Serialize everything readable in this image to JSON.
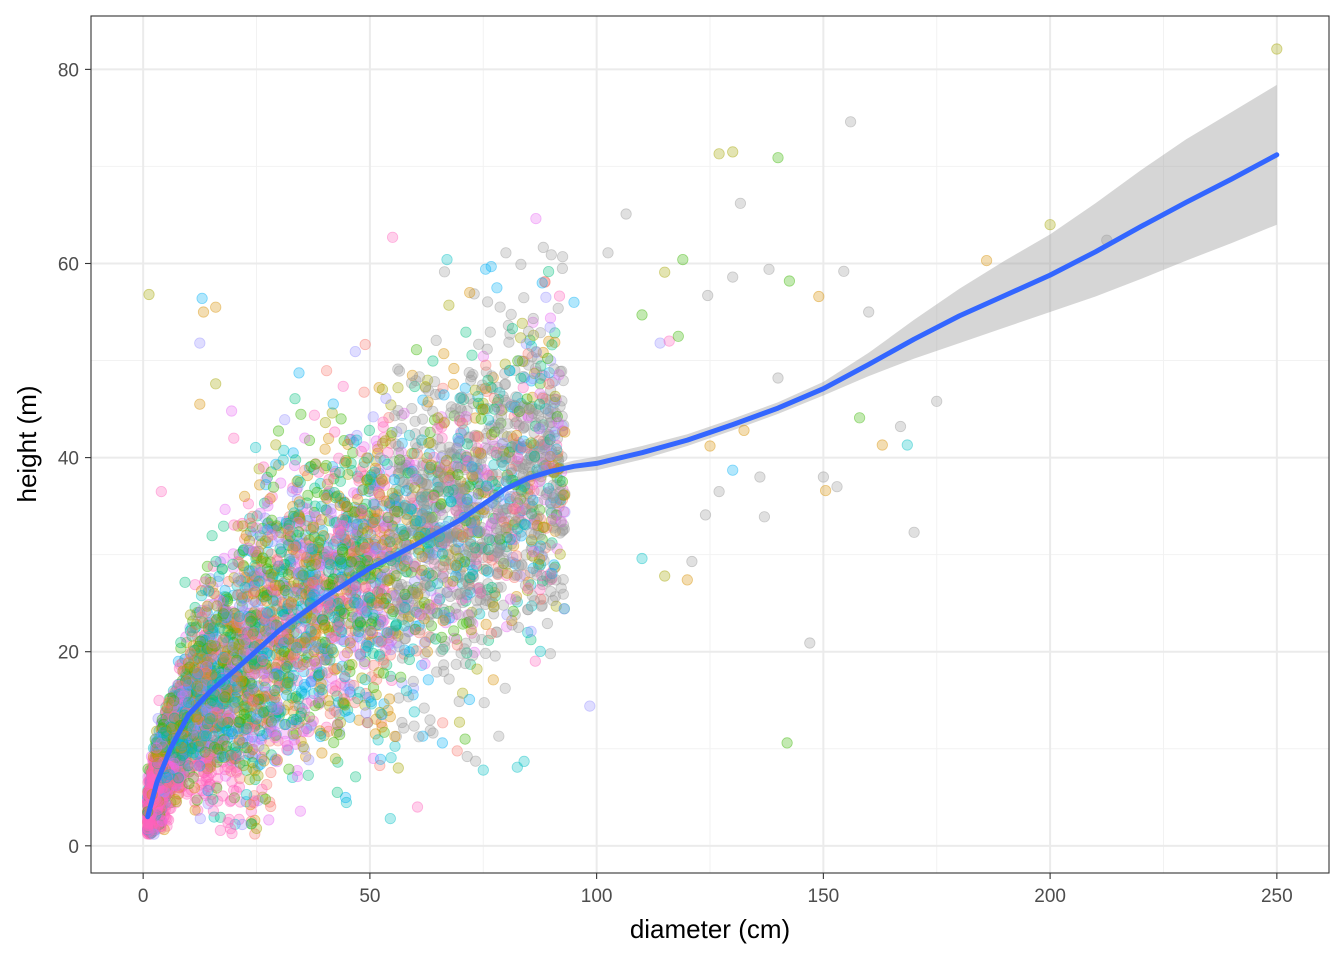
{
  "chart_data": {
    "type": "scatter",
    "title": "",
    "xlabel": "diameter (cm)",
    "ylabel": "height (m)",
    "xlim": [
      -11.5,
      261.5
    ],
    "ylim": [
      -2.8,
      85.5
    ],
    "x_ticks": [
      0,
      50,
      100,
      150,
      200,
      250
    ],
    "y_ticks": [
      0,
      20,
      40,
      60,
      80
    ],
    "x_tick_labels": [
      "0",
      "50",
      "100",
      "150",
      "200",
      "250"
    ],
    "y_tick_labels": [
      "0",
      "20",
      "40",
      "60",
      "80"
    ],
    "grid": true,
    "legend": "none",
    "point_alpha": 0.3,
    "point_palette": [
      "#F8766D",
      "#D89000",
      "#A3A500",
      "#39B600",
      "#00BF7D",
      "#00BFC4",
      "#00B0F6",
      "#9590FF",
      "#E76BF3",
      "#FF62BC",
      "#999999"
    ],
    "dense_cloud": {
      "description_points_approx": 6000,
      "x_range": [
        1,
        100
      ],
      "height_center": "follows smooth curve",
      "spread_m": 8
    },
    "outliers": [
      {
        "x": 1.3,
        "y": 56.8,
        "color": "#A3A500"
      },
      {
        "x": 4,
        "y": 36.5,
        "color": "#FF62BC"
      },
      {
        "x": 12.5,
        "y": 51.8,
        "color": "#9590FF"
      },
      {
        "x": 13,
        "y": 56.4,
        "color": "#00B0F6"
      },
      {
        "x": 13.3,
        "y": 55,
        "color": "#D89000"
      },
      {
        "x": 16,
        "y": 55.5,
        "color": "#D89000"
      },
      {
        "x": 12.5,
        "y": 45.5,
        "color": "#D89000"
      },
      {
        "x": 16,
        "y": 47.6,
        "color": "#A3A500"
      },
      {
        "x": 19.5,
        "y": 44.8,
        "color": "#E76BF3"
      },
      {
        "x": 20,
        "y": 42,
        "color": "#FF62BC"
      },
      {
        "x": 55,
        "y": 62.7,
        "color": "#FF62BC"
      },
      {
        "x": 67,
        "y": 60.4,
        "color": "#00BFC4"
      },
      {
        "x": 80,
        "y": 61.1,
        "color": "#999999"
      },
      {
        "x": 90,
        "y": 60.9,
        "color": "#999999"
      },
      {
        "x": 92.5,
        "y": 60.7,
        "color": "#999999"
      },
      {
        "x": 102.5,
        "y": 61.1,
        "color": "#999999"
      },
      {
        "x": 106.5,
        "y": 65.1,
        "color": "#999999"
      },
      {
        "x": 115,
        "y": 59.1,
        "color": "#A3A500"
      },
      {
        "x": 119,
        "y": 60.4,
        "color": "#39B600"
      },
      {
        "x": 124.5,
        "y": 56.7,
        "color": "#999999"
      },
      {
        "x": 127,
        "y": 71.3,
        "color": "#A3A500"
      },
      {
        "x": 130,
        "y": 71.5,
        "color": "#A3A500"
      },
      {
        "x": 131.7,
        "y": 66.2,
        "color": "#999999"
      },
      {
        "x": 130,
        "y": 58.6,
        "color": "#999999"
      },
      {
        "x": 138,
        "y": 59.4,
        "color": "#999999"
      },
      {
        "x": 140,
        "y": 70.9,
        "color": "#39B600"
      },
      {
        "x": 142.5,
        "y": 58.2,
        "color": "#39B600"
      },
      {
        "x": 149,
        "y": 56.6,
        "color": "#D89000"
      },
      {
        "x": 156,
        "y": 74.6,
        "color": "#999999"
      },
      {
        "x": 154.5,
        "y": 59.2,
        "color": "#999999"
      },
      {
        "x": 160,
        "y": 55,
        "color": "#999999"
      },
      {
        "x": 158,
        "y": 44.1,
        "color": "#39B600"
      },
      {
        "x": 163,
        "y": 41.3,
        "color": "#D89000"
      },
      {
        "x": 167,
        "y": 43.2,
        "color": "#999999"
      },
      {
        "x": 168.5,
        "y": 41.3,
        "color": "#00BFC4"
      },
      {
        "x": 175,
        "y": 45.8,
        "color": "#999999"
      },
      {
        "x": 170,
        "y": 32.3,
        "color": "#999999"
      },
      {
        "x": 147,
        "y": 20.9,
        "color": "#999999"
      },
      {
        "x": 142,
        "y": 10.6,
        "color": "#39B600"
      },
      {
        "x": 150,
        "y": 38,
        "color": "#999999"
      },
      {
        "x": 153,
        "y": 37,
        "color": "#999999"
      },
      {
        "x": 150.5,
        "y": 36.6,
        "color": "#D89000"
      },
      {
        "x": 137,
        "y": 33.9,
        "color": "#999999"
      },
      {
        "x": 132.5,
        "y": 42.8,
        "color": "#D89000"
      },
      {
        "x": 140,
        "y": 48.2,
        "color": "#999999"
      },
      {
        "x": 136,
        "y": 38,
        "color": "#999999"
      },
      {
        "x": 130,
        "y": 38.7,
        "color": "#00B0F6"
      },
      {
        "x": 127,
        "y": 36.5,
        "color": "#999999"
      },
      {
        "x": 125,
        "y": 41.2,
        "color": "#D89000"
      },
      {
        "x": 124,
        "y": 34.1,
        "color": "#999999"
      },
      {
        "x": 120,
        "y": 27.4,
        "color": "#D89000"
      },
      {
        "x": 121,
        "y": 29.3,
        "color": "#999999"
      },
      {
        "x": 115,
        "y": 27.8,
        "color": "#A3A500"
      },
      {
        "x": 110,
        "y": 29.6,
        "color": "#00BFC4"
      },
      {
        "x": 98.5,
        "y": 14.4,
        "color": "#9590FF"
      },
      {
        "x": 82.5,
        "y": 8.1,
        "color": "#00BFC4"
      },
      {
        "x": 84,
        "y": 8.7,
        "color": "#00BFC4"
      },
      {
        "x": 75,
        "y": 7.8,
        "color": "#00BFC4"
      },
      {
        "x": 71,
        "y": 11,
        "color": "#39B600"
      },
      {
        "x": 60.5,
        "y": 4,
        "color": "#FF62BC"
      },
      {
        "x": 54.5,
        "y": 2.8,
        "color": "#00BFC4"
      },
      {
        "x": 25,
        "y": 1.8,
        "color": "#A3A500"
      },
      {
        "x": 186,
        "y": 60.3,
        "color": "#D89000"
      },
      {
        "x": 200,
        "y": 64,
        "color": "#A3A500"
      },
      {
        "x": 212.5,
        "y": 62.4,
        "color": "#999999"
      },
      {
        "x": 250,
        "y": 82.1,
        "color": "#A3A500"
      },
      {
        "x": 110,
        "y": 54.7,
        "color": "#39B600"
      },
      {
        "x": 114,
        "y": 51.8,
        "color": "#9590FF"
      },
      {
        "x": 116,
        "y": 52,
        "color": "#FF62BC"
      },
      {
        "x": 118,
        "y": 52.5,
        "color": "#39B600"
      },
      {
        "x": 95,
        "y": 56,
        "color": "#00B0F6"
      },
      {
        "x": 88,
        "y": 58,
        "color": "#00B0F6"
      },
      {
        "x": 85,
        "y": 53,
        "color": "#999999"
      },
      {
        "x": 72,
        "y": 57,
        "color": "#D89000"
      },
      {
        "x": 78,
        "y": 57.5,
        "color": "#00B0F6"
      }
    ],
    "smooth_line": {
      "color": "#3366FF",
      "x": [
        1,
        3,
        6,
        10,
        15,
        20,
        30,
        40,
        50,
        60,
        70,
        80,
        85,
        90,
        95,
        100,
        110,
        120,
        130,
        140,
        150,
        160,
        170,
        180,
        190,
        200,
        210,
        220,
        230,
        240,
        250
      ],
      "y": [
        3,
        6.5,
        10,
        13.5,
        16,
        18,
        22.2,
        25.6,
        28.6,
        31,
        33.6,
        36.8,
        37.9,
        38.6,
        39.1,
        39.4,
        40.5,
        41.8,
        43.4,
        45.1,
        47.1,
        49.6,
        52.2,
        54.6,
        56.7,
        58.8,
        61.2,
        63.8,
        66.3,
        68.7,
        71.2
      ],
      "ci_lower": [
        2,
        5.8,
        9.4,
        13,
        15.6,
        17.7,
        22,
        25.4,
        28.4,
        30.8,
        33.4,
        36.5,
        37.5,
        38.1,
        38.5,
        38.7,
        39.8,
        41.2,
        42.8,
        44.5,
        46.4,
        48.4,
        50.2,
        51.8,
        53.4,
        55,
        56.6,
        58.4,
        60.3,
        62.1,
        64
      ],
      "ci_upper": [
        4,
        7.2,
        10.6,
        14,
        16.4,
        18.3,
        22.4,
        25.8,
        28.8,
        31.2,
        33.8,
        37.1,
        38.3,
        39.1,
        39.7,
        40.1,
        41.2,
        42.4,
        44,
        45.7,
        47.8,
        50.8,
        54.2,
        57.4,
        60.3,
        63,
        66.2,
        69.6,
        72.8,
        75.6,
        78.4
      ],
      "ci_color": "#999999"
    }
  }
}
